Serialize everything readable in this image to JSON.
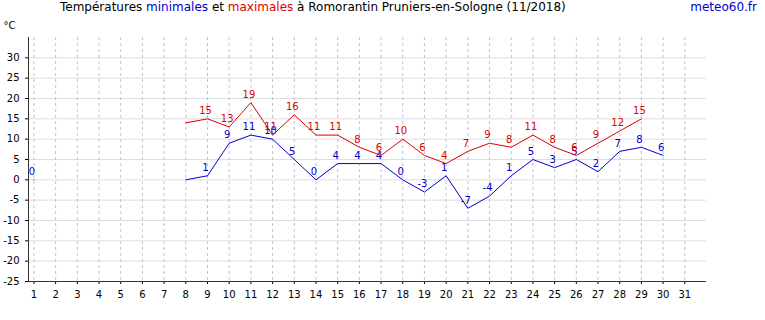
{
  "chart_data": {
    "type": "line",
    "title": "Températures minimales et maximales à Romorantin Pruniers-en-Sologne (11/2018)",
    "annotations": [
      "meteo60.fr"
    ],
    "y_label": "°C",
    "x": [
      1,
      2,
      3,
      4,
      5,
      6,
      7,
      8,
      9,
      10,
      11,
      12,
      13,
      14,
      15,
      16,
      17,
      18,
      19,
      20,
      21,
      22,
      23,
      24,
      25,
      26,
      27,
      28,
      29,
      30,
      31
    ],
    "series": [
      {
        "name": "minimales",
        "color": "#0000cc",
        "values": [
          0,
          null,
          null,
          null,
          null,
          null,
          null,
          0,
          1,
          9,
          11,
          10,
          5,
          0,
          4,
          4,
          4,
          0,
          -3,
          1,
          -7,
          -4,
          1,
          5,
          3,
          5,
          2,
          7,
          8,
          6,
          null
        ],
        "value_labels": [
          "0",
          null,
          null,
          null,
          null,
          null,
          null,
          null,
          "1",
          "9",
          "11",
          "10",
          "5",
          "0",
          "4",
          "4",
          "4",
          "0",
          "-3",
          "1",
          "-7",
          "-4",
          "1",
          "5",
          "3",
          "5",
          "2",
          "7",
          "8",
          "6",
          null
        ]
      },
      {
        "name": "maximales",
        "color": "#dd0000",
        "values": [
          null,
          null,
          null,
          null,
          null,
          null,
          null,
          14,
          15,
          13,
          19,
          11,
          16,
          11,
          11,
          8,
          6,
          10,
          6,
          4,
          7,
          9,
          8,
          11,
          8,
          6,
          9,
          12,
          15,
          null,
          null
        ],
        "value_labels": [
          null,
          null,
          null,
          null,
          null,
          null,
          null,
          null,
          "15",
          "13",
          "19",
          "11",
          "16",
          "11",
          "11",
          "8",
          "6",
          "10",
          "6",
          "4",
          "7",
          "9",
          "8",
          "11",
          "8",
          "6",
          "9",
          "12",
          "15",
          null,
          null
        ]
      }
    ],
    "xlim": [
      0.75,
      32
    ],
    "xticks": [
      1,
      2,
      3,
      4,
      5,
      6,
      7,
      8,
      9,
      10,
      11,
      12,
      13,
      14,
      15,
      16,
      17,
      18,
      19,
      20,
      21,
      22,
      23,
      24,
      25,
      26,
      27,
      28,
      29,
      30,
      31
    ],
    "ylim": [
      -25,
      35
    ],
    "yticks": [
      -25,
      -20,
      -15,
      -10,
      -5,
      0,
      5,
      10,
      15,
      20,
      25,
      30
    ],
    "grid": true,
    "data_labels": true,
    "marker": "none",
    "line_style": "solid"
  }
}
